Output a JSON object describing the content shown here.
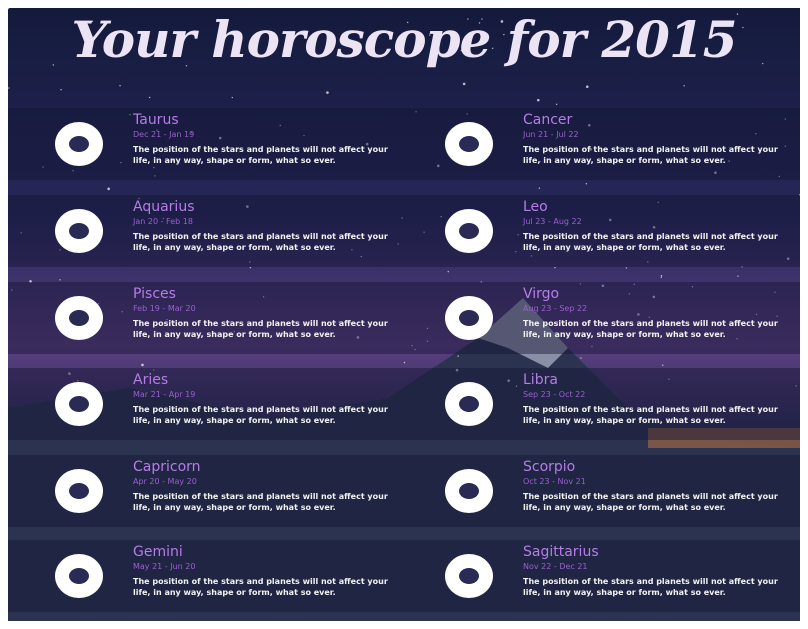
{
  "header": {
    "title": "Your horoscope for 2015"
  },
  "signs": [
    {
      "name": "Taurus",
      "dates": "Dec 21 - Jan 19",
      "text": "The position of the stars and planets will not affect your life, in any way, shape or form, what so ever."
    },
    {
      "name": "Cancer",
      "dates": "Jun 21 - Jul 22",
      "text": "The position of the stars and planets will not affect your life, in any way, shape or form, what so ever."
    },
    {
      "name": "Aquarius",
      "dates": "Jan 20 - Feb 18",
      "text": "The position of the stars and planets will not affect your life, in any way, shape or form, what so ever."
    },
    {
      "name": "Leo",
      "dates": "Jul 23 - Aug 22",
      "text": "The position of the stars and planets will not affect your life, in any way, shape or form, what so ever."
    },
    {
      "name": "Pisces",
      "dates": "Feb 19 - Mar 20",
      "text": "The position of the stars and planets will not affect your life, in any way, shape or form, what so ever."
    },
    {
      "name": "Virgo",
      "dates": "Aug 23 - Sep 22",
      "text": "The position of the stars and planets will not affect your life, in any way, shape or form, what so ever."
    },
    {
      "name": "Aries",
      "dates": "Mar 21 - Apr 19",
      "text": "The position of the stars and planets will not affect your life, in any way, shape or form, what so ever."
    },
    {
      "name": "Libra",
      "dates": "Sep 23 - Oct 22",
      "text": "The position of the stars and planets will not affect your life, in any way, shape or form, what so ever."
    },
    {
      "name": "Capricorn",
      "dates": "Apr 20 - May 20",
      "text": "The position of the stars and planets will not affect your life, in any way, shape or form, what so ever."
    },
    {
      "name": "Scorpio",
      "dates": "Oct 23 - Nov 21",
      "text": "The position of the stars and planets will not affect your life, in any way, shape or form, what so ever."
    },
    {
      "name": "Gemini",
      "dates": "May 21 - Jun 20",
      "text": "The position of the stars and planets will not affect your life, in any way, shape or form, what so ever."
    },
    {
      "name": "Sagittarius",
      "dates": "Nov 22 - Dec 21",
      "text": "The position of the stars and planets will not affect your life, in any way, shape or form, what so ever."
    }
  ]
}
